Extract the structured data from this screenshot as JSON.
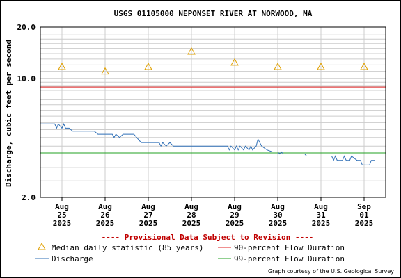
{
  "chart_data": {
    "type": "line",
    "title": "USGS 01105000 NEPONSET RIVER AT NORWOOD, MA",
    "ylabel": "Discharge, cubic feet per second",
    "y_scale": "log",
    "ylim": [
      2.0,
      20.0
    ],
    "y_tick_labels": [
      {
        "value": 2.0,
        "label": "2.0"
      },
      {
        "value": 10.0,
        "label": "10.0"
      },
      {
        "value": 20.0,
        "label": "20.0"
      }
    ],
    "x_tick_labels": [
      {
        "x": "2025-08-25",
        "lines": [
          "Aug",
          "25",
          "2025"
        ]
      },
      {
        "x": "2025-08-26",
        "lines": [
          "Aug",
          "26",
          "2025"
        ]
      },
      {
        "x": "2025-08-27",
        "lines": [
          "Aug",
          "27",
          "2025"
        ]
      },
      {
        "x": "2025-08-28",
        "lines": [
          "Aug",
          "28",
          "2025"
        ]
      },
      {
        "x": "2025-08-29",
        "lines": [
          "Aug",
          "29",
          "2025"
        ]
      },
      {
        "x": "2025-08-30",
        "lines": [
          "Aug",
          "30",
          "2025"
        ]
      },
      {
        "x": "2025-08-31",
        "lines": [
          "Aug",
          "31",
          "2025"
        ]
      },
      {
        "x": "2025-09-01",
        "lines": [
          "Sep",
          "01",
          "2025"
        ]
      }
    ],
    "xlim": [
      "2025-08-24T12:00",
      "2025-09-01T12:00"
    ],
    "grid": true,
    "series": [
      {
        "name": "Discharge",
        "color": "#2f6fb6",
        "points": [
          [
            "2025-08-24T12:00",
            5.4
          ],
          [
            "2025-08-24T20:00",
            5.4
          ],
          [
            "2025-08-24T21:00",
            5.1
          ],
          [
            "2025-08-24T22:00",
            5.4
          ],
          [
            "2025-08-25T00:00",
            5.1
          ],
          [
            "2025-08-25T01:00",
            5.4
          ],
          [
            "2025-08-25T02:00",
            5.1
          ],
          [
            "2025-08-25T04:00",
            5.1
          ],
          [
            "2025-08-25T06:00",
            4.9
          ],
          [
            "2025-08-25T18:00",
            4.9
          ],
          [
            "2025-08-25T20:00",
            4.7
          ],
          [
            "2025-08-26T04:00",
            4.7
          ],
          [
            "2025-08-26T05:00",
            4.5
          ],
          [
            "2025-08-26T06:00",
            4.7
          ],
          [
            "2025-08-26T08:00",
            4.5
          ],
          [
            "2025-08-26T10:00",
            4.7
          ],
          [
            "2025-08-26T16:00",
            4.7
          ],
          [
            "2025-08-26T20:00",
            4.2
          ],
          [
            "2025-08-27T06:00",
            4.2
          ],
          [
            "2025-08-27T07:00",
            4.0
          ],
          [
            "2025-08-27T08:00",
            4.2
          ],
          [
            "2025-08-27T10:00",
            4.0
          ],
          [
            "2025-08-27T12:00",
            4.2
          ],
          [
            "2025-08-27T14:00",
            4.0
          ],
          [
            "2025-08-27T16:00",
            4.0
          ],
          [
            "2025-08-28T00:00",
            4.0
          ],
          [
            "2025-08-28T12:00",
            4.0
          ],
          [
            "2025-08-28T20:00",
            4.0
          ],
          [
            "2025-08-28T21:00",
            3.8
          ],
          [
            "2025-08-28T22:00",
            4.0
          ],
          [
            "2025-08-29T00:00",
            3.8
          ],
          [
            "2025-08-29T01:00",
            4.0
          ],
          [
            "2025-08-29T02:00",
            3.8
          ],
          [
            "2025-08-29T03:00",
            4.0
          ],
          [
            "2025-08-29T05:00",
            3.8
          ],
          [
            "2025-08-29T06:00",
            4.0
          ],
          [
            "2025-08-29T08:00",
            3.8
          ],
          [
            "2025-08-29T09:00",
            4.0
          ],
          [
            "2025-08-29T10:00",
            3.8
          ],
          [
            "2025-08-29T12:00",
            4.0
          ],
          [
            "2025-08-29T13:00",
            4.4
          ],
          [
            "2025-08-29T15:00",
            4.0
          ],
          [
            "2025-08-29T18:00",
            3.8
          ],
          [
            "2025-08-29T21:00",
            3.7
          ],
          [
            "2025-08-30T00:00",
            3.7
          ],
          [
            "2025-08-30T01:00",
            3.6
          ],
          [
            "2025-08-30T02:00",
            3.7
          ],
          [
            "2025-08-30T03:00",
            3.6
          ],
          [
            "2025-08-30T15:00",
            3.6
          ],
          [
            "2025-08-30T16:00",
            3.5
          ],
          [
            "2025-08-31T00:00",
            3.5
          ],
          [
            "2025-08-31T06:00",
            3.5
          ],
          [
            "2025-08-31T07:00",
            3.3
          ],
          [
            "2025-08-31T08:00",
            3.5
          ],
          [
            "2025-08-31T09:00",
            3.3
          ],
          [
            "2025-08-31T12:00",
            3.3
          ],
          [
            "2025-08-31T13:00",
            3.5
          ],
          [
            "2025-08-31T14:00",
            3.3
          ],
          [
            "2025-08-31T16:00",
            3.3
          ],
          [
            "2025-08-31T17:00",
            3.5
          ],
          [
            "2025-08-31T20:00",
            3.3
          ],
          [
            "2025-08-31T22:00",
            3.3
          ],
          [
            "2025-08-31T23:00",
            3.1
          ],
          [
            "2025-09-01T03:00",
            3.1
          ],
          [
            "2025-09-01T04:00",
            3.3
          ],
          [
            "2025-09-01T06:00",
            3.3
          ]
        ]
      }
    ],
    "reference_lines": [
      {
        "name": "90-percent Flow Duration",
        "value": 8.9,
        "color": "#e02020"
      },
      {
        "name": "99-percent Flow Duration",
        "value": 3.65,
        "color": "#20a020"
      }
    ],
    "median_statistic": {
      "name": "Median daily statistic (85 years)",
      "color": "#e0a000",
      "points": [
        [
          "2025-08-25T00:00",
          11.7
        ],
        [
          "2025-08-26T00:00",
          11.0
        ],
        [
          "2025-08-27T00:00",
          11.7
        ],
        [
          "2025-08-28T00:00",
          14.4
        ],
        [
          "2025-08-29T00:00",
          12.4
        ],
        [
          "2025-08-30T00:00",
          11.7
        ],
        [
          "2025-08-31T00:00",
          11.7
        ],
        [
          "2025-09-01T00:00",
          11.7
        ]
      ]
    },
    "notice": "---- Provisional Data Subject to Revision ----",
    "credit": "Graph courtesy of the U.S. Geological Survey"
  }
}
